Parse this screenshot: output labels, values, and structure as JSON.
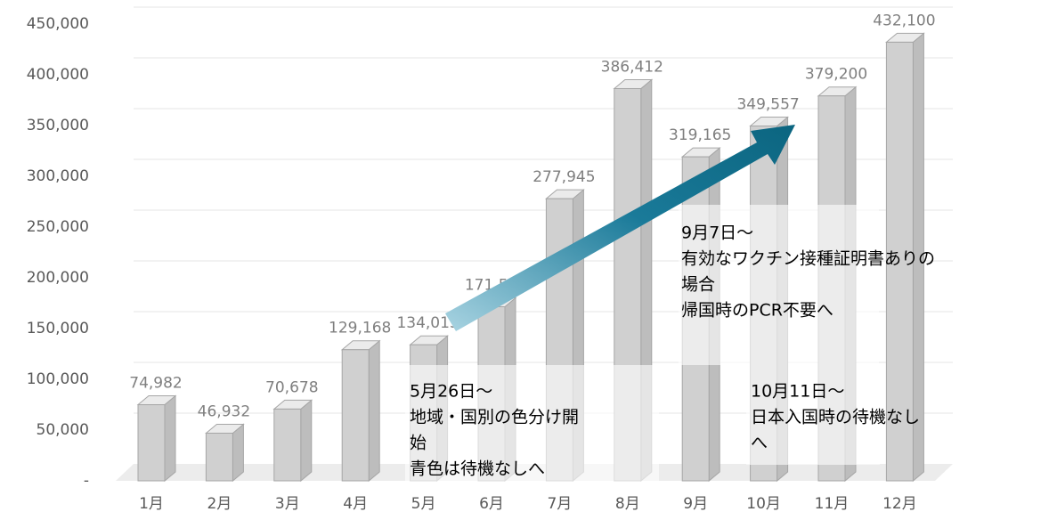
{
  "chart_data": {
    "type": "bar3d",
    "categories": [
      "1月",
      "2月",
      "3月",
      "4月",
      "5月",
      "6月",
      "7月",
      "8月",
      "9月",
      "10月",
      "11月",
      "12月"
    ],
    "values": [
      74982,
      46932,
      70678,
      129168,
      134013,
      171500,
      277945,
      386412,
      319165,
      349557,
      379200,
      432100
    ],
    "value_labels": [
      "74,982",
      "46,932",
      "70,678",
      "129,168",
      "134,013",
      "171,500",
      "277,945",
      "386,412",
      "319,165",
      "349,557",
      "379,200",
      "432,100"
    ],
    "color": "#d0d0d0",
    "ylim": [
      0,
      450000
    ],
    "yticks": [
      {
        "value": 0,
        "label": "-"
      },
      {
        "value": 50000,
        "label": "50,000"
      },
      {
        "value": 100000,
        "label": "100,000"
      },
      {
        "value": 150000,
        "label": "150,000"
      },
      {
        "value": 200000,
        "label": "200,000"
      },
      {
        "value": 250000,
        "label": "250,000"
      },
      {
        "value": 300000,
        "label": "300,000"
      },
      {
        "value": 350000,
        "label": "350,000"
      },
      {
        "value": 400000,
        "label": "400,000"
      },
      {
        "value": 450000,
        "label": "450,000"
      }
    ],
    "grid": true,
    "annotations": [
      {
        "lines": [
          "5月26日～",
          "地域・国別の色分け開",
          "始",
          "青色は待機なしへ"
        ]
      },
      {
        "lines": [
          "9月7日～",
          "有効なワクチン接種証明書ありの",
          "場合",
          "帰国時のPCR不要へ"
        ]
      },
      {
        "lines": [
          "10月11日～",
          "日本入国時の待機なし",
          "へ"
        ]
      }
    ]
  }
}
